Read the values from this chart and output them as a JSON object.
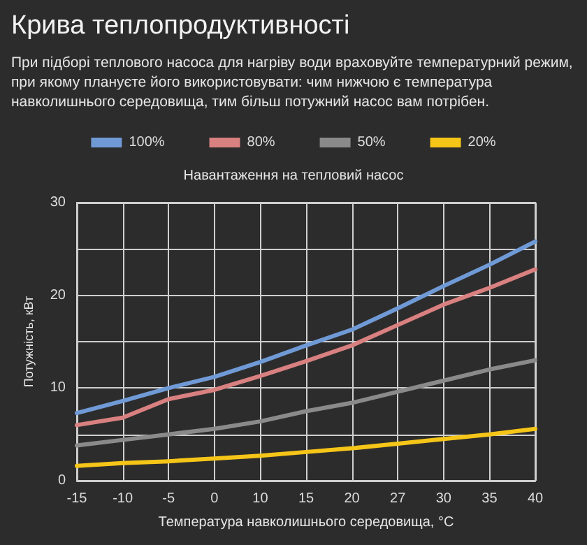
{
  "chart_data": {
    "type": "line",
    "title": "Крива теплопродуктивності",
    "subtitle": "При підборі теплового насоса для нагріву води враховуйте температурний режим, при якому плануєте його використовувати: чим нижчою є температура навколишнього середовища, тим більш потужний насос вам потрібен.",
    "legend_title": "Навантаження на тепловий насос",
    "xlabel": "Температура навколишнього середовища, °C",
    "ylabel": "Потужність, кВт",
    "categories": [
      "-15",
      "-10",
      "-5",
      "0",
      "10",
      "15",
      "20",
      "27",
      "30",
      "35",
      "40"
    ],
    "series": [
      {
        "name": "100%",
        "color": "#6f9ad6",
        "values": [
          7.3,
          8.6,
          10,
          11.2,
          12.8,
          14.6,
          16.3,
          18.6,
          21,
          23.3,
          25.8
        ]
      },
      {
        "name": "80%",
        "color": "#d98080",
        "values": [
          6,
          6.8,
          8.8,
          9.8,
          11.3,
          12.9,
          14.6,
          16.8,
          19,
          20.8,
          22.8
        ]
      },
      {
        "name": "50%",
        "color": "#8a8a8a",
        "values": [
          3.8,
          4.4,
          5,
          5.6,
          6.4,
          7.5,
          8.4,
          9.6,
          10.8,
          12,
          13
        ]
      },
      {
        "name": "20%",
        "color": "#f5c518",
        "values": [
          1.6,
          1.9,
          2.1,
          2.4,
          2.7,
          3.1,
          3.5,
          4,
          4.5,
          5,
          5.6
        ]
      }
    ],
    "ylim": [
      0,
      30
    ],
    "yticks": [
      0,
      {
        "value": 5,
        "label": null
      },
      10,
      {
        "value": 15,
        "label": null
      },
      20,
      {
        "value": 25,
        "label": null
      },
      30
    ],
    "grid": true,
    "legend": "top",
    "marker": "none",
    "line_style": "solid"
  }
}
